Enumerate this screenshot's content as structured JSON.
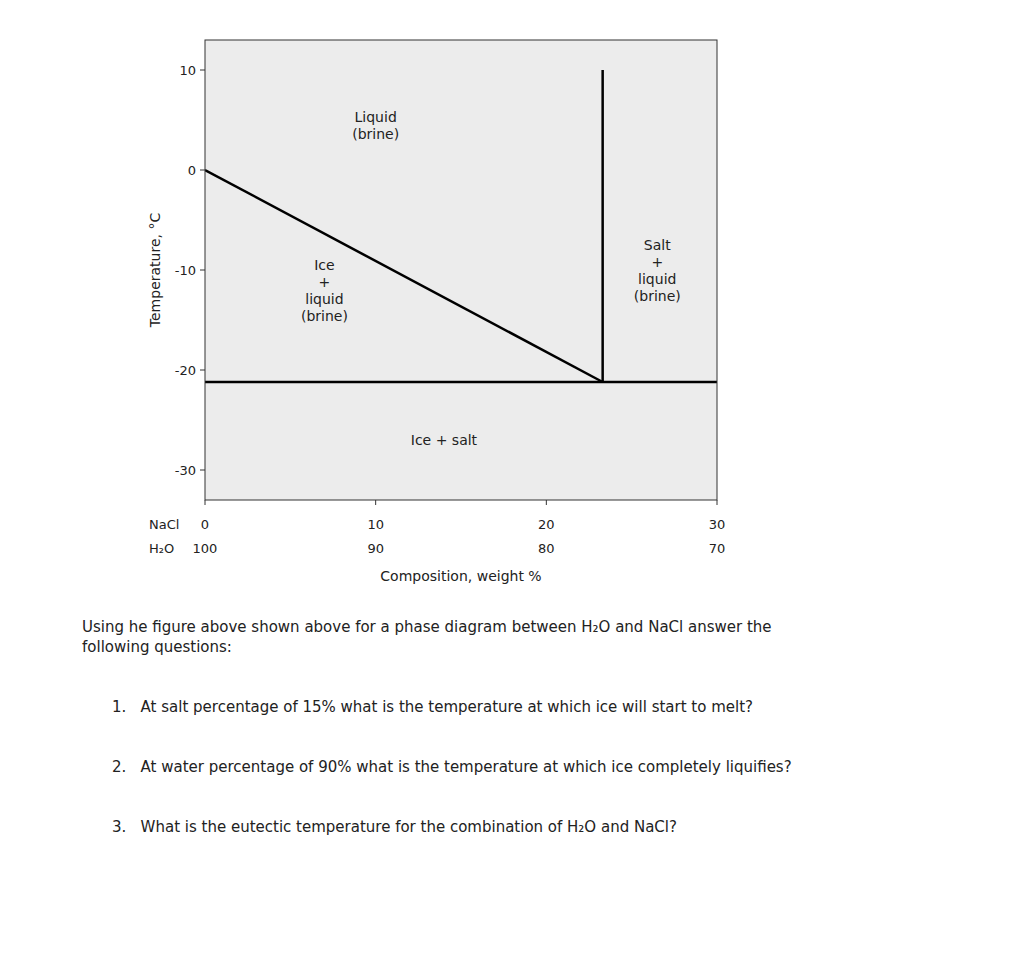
{
  "chart_data": {
    "type": "line",
    "ylabel": "Temperature, °C",
    "xlabel": "Composition, weight %",
    "xlim": [
      0,
      30
    ],
    "ylim": [
      -33,
      13
    ],
    "xticks": [
      0,
      10,
      20,
      30
    ],
    "xticks_name": "NaCl",
    "xticks_2": [
      {
        "value": 0,
        "label": "100"
      },
      {
        "value": 10,
        "label": "90"
      },
      {
        "value": 20,
        "label": "80"
      },
      {
        "value": 30,
        "label": "70"
      }
    ],
    "xticks_2_name": "H₂O",
    "yticks": [
      10,
      0,
      -10,
      -20,
      -30
    ],
    "grid": false,
    "series": [
      {
        "x": [
          0,
          23.3
        ],
        "values": [
          0,
          -21.2
        ],
        "color": "#000000"
      },
      {
        "x": [
          23.3,
          23.3
        ],
        "values": [
          -21.2,
          10
        ],
        "color": "#000000"
      },
      {
        "x": [
          0,
          30
        ],
        "values": [
          -21.2,
          -21.2
        ],
        "color": "#000000"
      }
    ],
    "annotations": [
      {
        "x": 10,
        "y": 4.5,
        "text": "Liquid\n(brine)"
      },
      {
        "x": 7,
        "y": -12,
        "text": "Ice\n+\nliquid\n(brine)"
      },
      {
        "x": 26.5,
        "y": -10,
        "text": "Salt\n+\nliquid\n(brine)"
      },
      {
        "x": 14,
        "y": -27,
        "text": "Ice + salt"
      }
    ],
    "notes": [
      "Using he figure above shown above for a phase diagram between H₂O and NaCl answer the\nfollowing questions:",
      "1.   At salt percentage of 15% what is the temperature at which ice will start to melt?",
      "2.   At water percentage of 90% what is the temperature at which ice completely liquifies?",
      "3.   What is the eutectic temperature for the combination of H₂O and NaCl?"
    ]
  }
}
